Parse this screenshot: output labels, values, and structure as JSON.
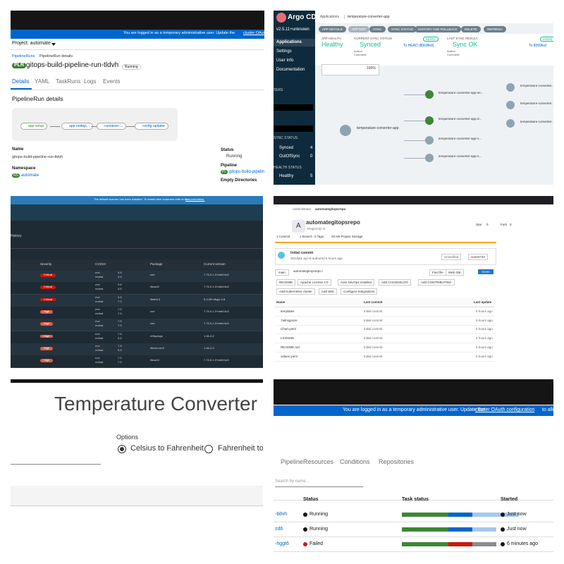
{
  "p1": {
    "banner": "You are logged in as a temporary administrative user. Update the",
    "banner_link": "cluster OAuth configuration",
    "project": "Project: automate",
    "breadcrumb": [
      "PipelineRuns",
      "PipelineRun details"
    ],
    "badge": "PLR",
    "title": "gitops-build-pipeline-run-tldvh",
    "status": "Running",
    "tabs": [
      "Details",
      "YAML",
      "TaskRuns",
      "Logs",
      "Events"
    ],
    "section": "PipelineRun details",
    "tasks": [
      "app-setup",
      "app-nodejs...",
      "container-...",
      "config-updater"
    ],
    "name_label": "Name",
    "name": "gitops-build-pipeline-run-tldvh",
    "namespace_label": "Namespace",
    "ns_badge": "NS",
    "namespace": "automate",
    "status_label": "Status",
    "pipeline_label": "Pipeline",
    "pl_badge": "PL",
    "pipeline": "gitops-build-pipeline",
    "empty_dirs": "Empty Directories"
  },
  "p2": {
    "logo": "Argo CD",
    "version": "v2.5.11+unknown",
    "nav": [
      "Applications",
      "Settings",
      "User Info",
      "Documentation"
    ],
    "filters": "TERS",
    "sync_label": "SYNC STATUS",
    "sync": [
      [
        "Synced",
        "4"
      ],
      [
        "OutOfSync",
        "0"
      ]
    ],
    "health_label": "HEALTH STATUS",
    "health": [
      [
        "Healthy",
        "5"
      ]
    ],
    "breadcrumb": [
      "Applications",
      "temperature-converter-app"
    ],
    "buttons": [
      "APP DETAILS",
      "APP DIFF",
      "SYNC",
      "SYNC STATUS",
      "HISTORY AND ROLLBACK",
      "DELETE",
      "REFRESH"
    ],
    "app_health_label": "APP HEALTH",
    "app_health": "Healthy",
    "cur_sync_label": "CURRENT SYNC STATUS",
    "cur_sync": "Synced",
    "cur_to": "To HEAD (8069fed)",
    "last_sync_label": "LAST SYNC RESULT",
    "last_sync": "Sync OK",
    "last_to": "To 8069fed",
    "more": "MORE",
    "author": "Author:",
    "comment": "Comment:",
    "zoom": "100%",
    "root": "temperature-converter-app",
    "nodes": [
      "temperature-converter-app-se...",
      "temperature-converter-app-d...",
      "temperature-converter-app-n...",
      "temperature-converter-app-n..."
    ],
    "leaves": [
      "temperature-converter...",
      "temperature-converter...",
      "temperature-converter..."
    ]
  },
  "p3": {
    "notice": "The default scanner has been installed. To install other scanners refer to the",
    "notice_link": "documentation.",
    "history": "History",
    "headers": [
      "Severity",
      "CVSS3",
      "Package",
      "Current version"
    ],
    "rows": [
      [
        "Critical",
        "nvd",
        "9.8",
        "redhat",
        "4.6",
        "curl",
        "7.74.0-1.3+deb11u3"
      ],
      [
        "Critical",
        "nvd",
        "9.8",
        "redhat",
        "4.6",
        "libcurl4",
        "7.74.0-1.3+deb11u3"
      ],
      [
        "Critical",
        "nvd",
        "9.8",
        "redhat",
        "7.5",
        "libdb5.3",
        "5.3.28+dfsg1-0.8"
      ],
      [
        "High",
        "nvd",
        "7.5",
        "redhat",
        "7.5",
        "curl",
        "7.74.0-1.3+deb11u3"
      ],
      [
        "High",
        "nvd",
        "7.5",
        "redhat",
        "7.5",
        "curl",
        "7.74.0-1.3+deb11u3"
      ],
      [
        "High",
        "nvd",
        "7.8",
        "redhat",
        "5.8",
        "e2fsprogs",
        "1.46.2-2"
      ],
      [
        "High",
        "nvd",
        "7.8",
        "redhat",
        "5.8",
        "libcom-err2",
        "1.46.2-2"
      ],
      [
        "High",
        "nvd",
        "7.5",
        "redhat",
        "7.5",
        "libcurl4",
        "7.74.0-1.3+deb11u3"
      ]
    ]
  },
  "p4": {
    "breadcrumb": [
      "Administrator",
      "automategitopsrepo"
    ],
    "avatar": "A",
    "name": "automategitopsrepo",
    "project_id": "Project ID: 9",
    "stats": [
      "1 Commit",
      "1 Branch",
      "0 Tags",
      "20 KB Project Storage"
    ],
    "star": "Star",
    "star_n": "0",
    "fork": "Fork",
    "fork_n": "0",
    "commit": "Initial commit",
    "commit_by": "SOUMIL ayo-8 authored 5 hours ago",
    "unverified": "Unverified",
    "sha": "ce222733",
    "branch": "main",
    "path": "automategitopsrepo /",
    "find": "Find file",
    "ide": "Web IDE",
    "clone": "Clone",
    "shortcuts": [
      "README",
      "Apache License 2.0",
      "Auto DevOps enabled",
      "Add CHANGELOG",
      "Add CONTRIBUTING",
      "Add Kubernetes cluster",
      "Add Wiki",
      "Configure Integrations"
    ],
    "headers": [
      "Name",
      "Last commit",
      "Last update"
    ],
    "files": [
      [
        "templates",
        "Initial commit",
        "5 hours ago"
      ],
      [
        ".helmignore",
        "Initial commit",
        "5 hours ago"
      ],
      [
        "Chart.yaml",
        "Initial commit",
        "5 hours ago"
      ],
      [
        "LICENSE",
        "Initial commit",
        "5 hours ago"
      ],
      [
        "README.md",
        "Initial commit",
        "5 hours ago"
      ],
      [
        "values.yaml",
        "Initial commit",
        "5 hours ago"
      ]
    ]
  },
  "p5": {
    "title": "Temperature Converter",
    "options": "Options",
    "opt1": "Celsius to Fahrenheit",
    "opt2": "Fahrenheit to C"
  },
  "p6": {
    "banner": "You are logged in as a temporary administrative user. Update the",
    "banner_link": "cluster OAuth configuration",
    "banner_tail": "to allow ot",
    "tabs": [
      "PipelineResources",
      "Conditions",
      "Repositories"
    ],
    "search": "Search by name...",
    "headers": [
      "Status",
      "Task status",
      "Started"
    ],
    "rows": [
      [
        "-tldvh",
        "Running",
        "Just now"
      ],
      [
        "zd6",
        "Running",
        "Just now"
      ],
      [
        "-hggt6",
        "Failed",
        "6 minutes ago"
      ]
    ]
  }
}
